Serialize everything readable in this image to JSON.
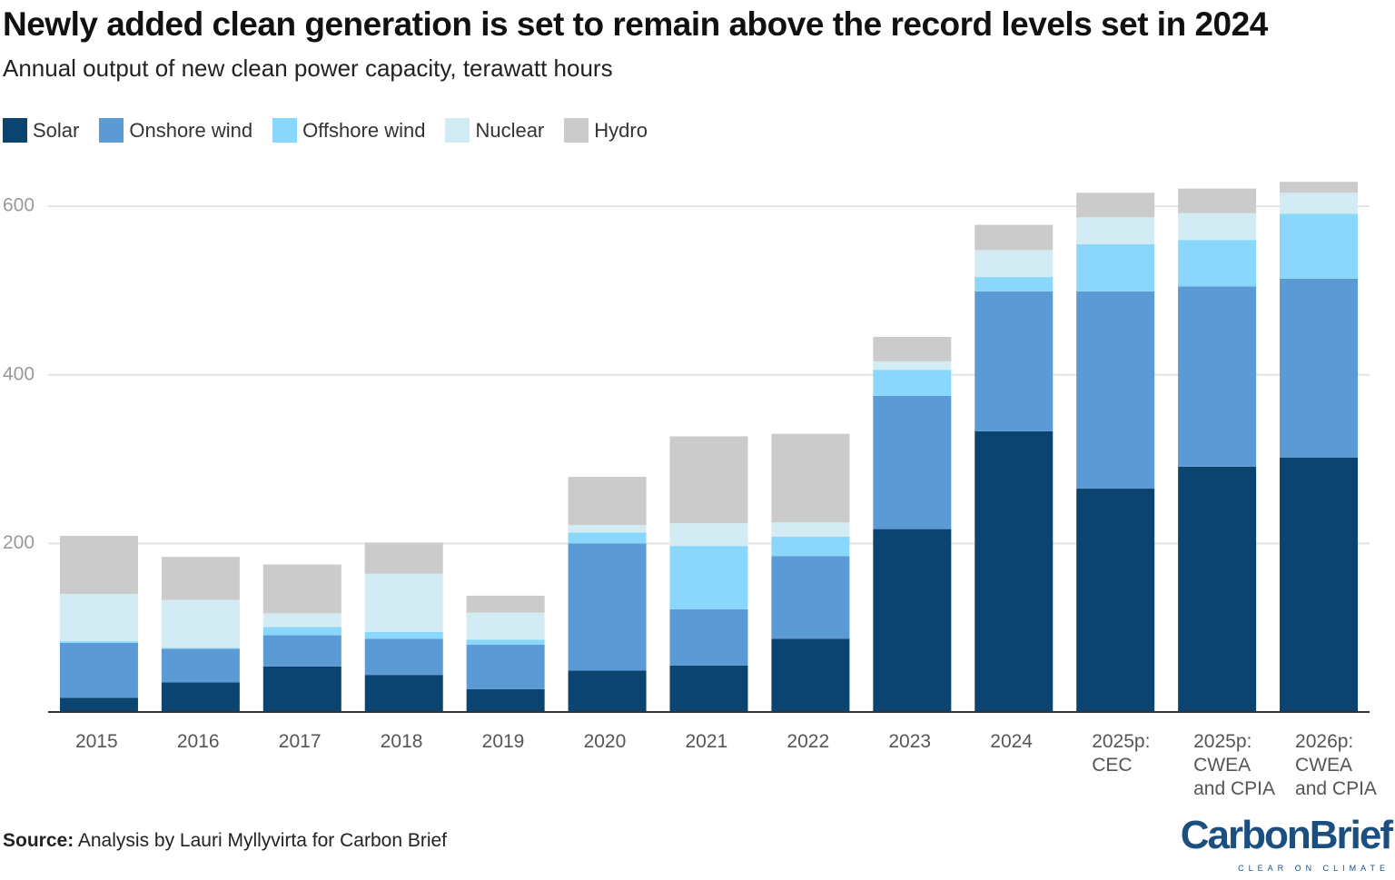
{
  "chart_data": {
    "type": "stacked-bar",
    "title": "Newly added clean generation is set to remain above the record levels set in 2024",
    "subtitle": "Annual output of new clean power capacity, terawatt hours",
    "categories": [
      "2015",
      "2016",
      "2017",
      "2018",
      "2019",
      "2020",
      "2021",
      "2022",
      "2023",
      "2024",
      "2025p: CEC",
      "2025p: CWEA and CPIA",
      "2026p: CWEA and CPIA"
    ],
    "series": [
      {
        "name": "Solar",
        "color": "#0c4470",
        "values": [
          17,
          35,
          54,
          44,
          27,
          49,
          55,
          87,
          217,
          333,
          265,
          291,
          302
        ]
      },
      {
        "name": "Onshore wind",
        "color": "#5b9ad5",
        "values": [
          65,
          40,
          37,
          43,
          53,
          151,
          67,
          98,
          158,
          166,
          234,
          214,
          212
        ]
      },
      {
        "name": "Offshore wind",
        "color": "#89d8fb",
        "values": [
          2,
          1,
          10,
          8,
          6,
          13,
          75,
          23,
          31,
          17,
          56,
          55,
          77
        ]
      },
      {
        "name": "Nuclear",
        "color": "#d3ebf3",
        "values": [
          56,
          57,
          16,
          69,
          32,
          9,
          27,
          17,
          10,
          32,
          32,
          32,
          25
        ]
      },
      {
        "name": "Hydro",
        "color": "#cbcbcb",
        "values": [
          69,
          51,
          58,
          37,
          20,
          57,
          103,
          105,
          29,
          30,
          29,
          29,
          13
        ]
      }
    ],
    "ylim": [
      0,
      640
    ],
    "yticks": [
      200,
      400,
      600
    ],
    "grid": true,
    "source_label": "Source:",
    "source": "Analysis by Lauri Myllyvirta for Carbon Brief"
  },
  "branding": {
    "logo": "CarbonBrief",
    "tagline": "CLEAR ON CLIMATE"
  }
}
